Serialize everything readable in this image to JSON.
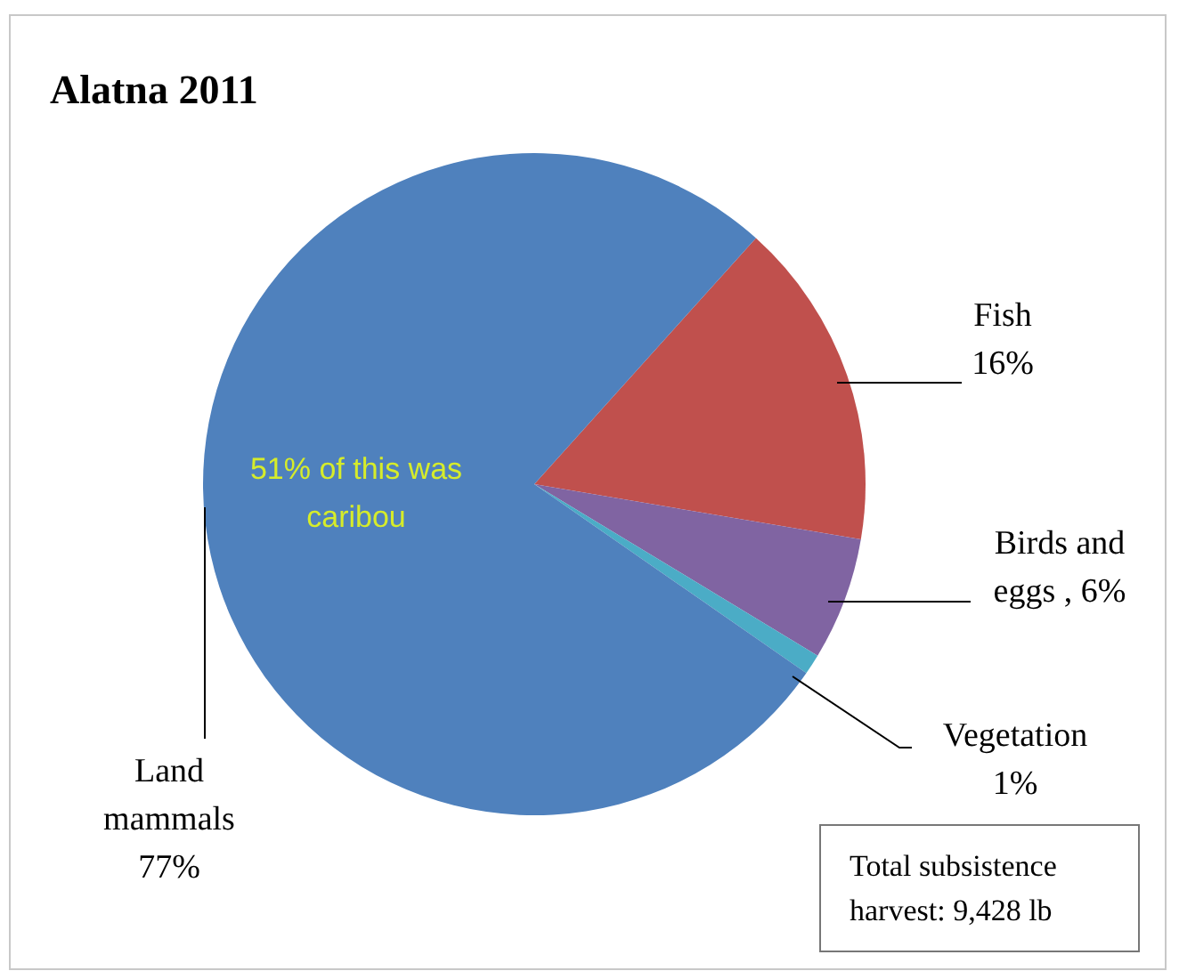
{
  "chart_data": {
    "type": "pie",
    "title": "Alatna 2011",
    "categories": [
      "Fish",
      "Birds and eggs",
      "Vegetation",
      "Land mammals"
    ],
    "values": [
      16,
      6,
      1,
      77
    ],
    "value_labels": [
      "16%",
      "6%",
      "1%",
      "77%"
    ],
    "colors": [
      "#c0504d",
      "#8064a2",
      "#4bacc6",
      "#4f81bd"
    ],
    "annotations": [
      "51% of this was caribou",
      "Total subsistence harvest: 9,428 lb"
    ]
  }
}
